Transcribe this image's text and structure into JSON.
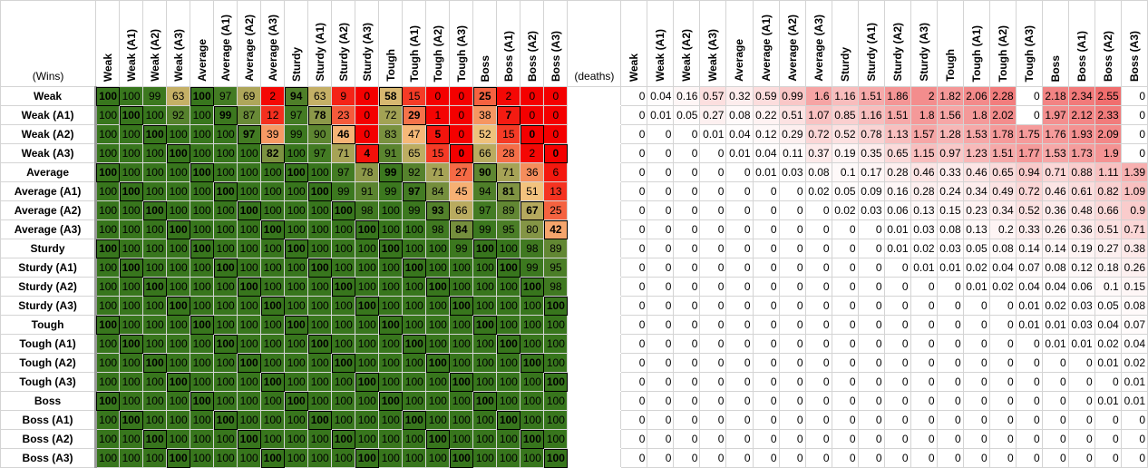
{
  "corner_label": "(Wins)",
  "deaths_label": "(deaths)",
  "columns": [
    "Weak",
    "Weak (A1)",
    "Weak (A2)",
    "Weak (A3)",
    "Average",
    "Average (A1)",
    "Average (A2)",
    "Average (A3)",
    "Sturdy",
    "Sturdy (A1)",
    "Sturdy (A2)",
    "Sturdy (A3)",
    "Tough",
    "Tough (A1)",
    "Tough (A2)",
    "Tough (A3)",
    "Boss",
    "Boss (A1)",
    "Boss (A2)",
    "Boss (A3)"
  ],
  "rows": [
    "Weak",
    "Weak (A1)",
    "Weak (A2)",
    "Weak (A3)",
    "Average",
    "Average (A1)",
    "Average (A2)",
    "Average (A3)",
    "Sturdy",
    "Sturdy (A1)",
    "Sturdy (A2)",
    "Sturdy (A3)",
    "Tough",
    "Tough (A1)",
    "Tough (A2)",
    "Tough (A3)",
    "Boss",
    "Boss (A1)",
    "Boss (A2)",
    "Boss (A3)"
  ],
  "wins": [
    [
      100,
      100,
      99,
      63,
      100,
      97,
      69,
      2,
      94,
      63,
      9,
      0,
      58,
      15,
      0,
      0,
      25,
      2,
      0,
      0
    ],
    [
      100,
      100,
      100,
      92,
      100,
      99,
      87,
      12,
      97,
      78,
      23,
      0,
      72,
      29,
      1,
      0,
      38,
      7,
      0,
      0
    ],
    [
      100,
      100,
      100,
      100,
      100,
      100,
      97,
      39,
      99,
      90,
      46,
      0,
      83,
      47,
      5,
      0,
      52,
      15,
      0,
      0
    ],
    [
      100,
      100,
      100,
      100,
      100,
      100,
      100,
      82,
      100,
      97,
      71,
      4,
      91,
      65,
      15,
      0,
      66,
      28,
      2,
      0
    ],
    [
      100,
      100,
      100,
      100,
      100,
      100,
      100,
      100,
      100,
      100,
      97,
      78,
      99,
      92,
      71,
      27,
      90,
      71,
      36,
      6
    ],
    [
      100,
      100,
      100,
      100,
      100,
      100,
      100,
      100,
      100,
      100,
      99,
      91,
      99,
      97,
      84,
      45,
      94,
      81,
      51,
      13
    ],
    [
      100,
      100,
      100,
      100,
      100,
      100,
      100,
      100,
      100,
      100,
      100,
      98,
      100,
      99,
      93,
      66,
      97,
      89,
      67,
      25
    ],
    [
      100,
      100,
      100,
      100,
      100,
      100,
      100,
      100,
      100,
      100,
      100,
      100,
      100,
      100,
      98,
      84,
      99,
      95,
      80,
      42
    ],
    [
      100,
      100,
      100,
      100,
      100,
      100,
      100,
      100,
      100,
      100,
      100,
      100,
      100,
      100,
      100,
      99,
      100,
      100,
      98,
      89
    ],
    [
      100,
      100,
      100,
      100,
      100,
      100,
      100,
      100,
      100,
      100,
      100,
      100,
      100,
      100,
      100,
      100,
      100,
      100,
      99,
      95
    ],
    [
      100,
      100,
      100,
      100,
      100,
      100,
      100,
      100,
      100,
      100,
      100,
      100,
      100,
      100,
      100,
      100,
      100,
      100,
      100,
      98
    ],
    [
      100,
      100,
      100,
      100,
      100,
      100,
      100,
      100,
      100,
      100,
      100,
      100,
      100,
      100,
      100,
      100,
      100,
      100,
      100,
      100
    ],
    [
      100,
      100,
      100,
      100,
      100,
      100,
      100,
      100,
      100,
      100,
      100,
      100,
      100,
      100,
      100,
      100,
      100,
      100,
      100,
      100
    ],
    [
      100,
      100,
      100,
      100,
      100,
      100,
      100,
      100,
      100,
      100,
      100,
      100,
      100,
      100,
      100,
      100,
      100,
      100,
      100,
      100
    ],
    [
      100,
      100,
      100,
      100,
      100,
      100,
      100,
      100,
      100,
      100,
      100,
      100,
      100,
      100,
      100,
      100,
      100,
      100,
      100,
      100
    ],
    [
      100,
      100,
      100,
      100,
      100,
      100,
      100,
      100,
      100,
      100,
      100,
      100,
      100,
      100,
      100,
      100,
      100,
      100,
      100,
      100
    ],
    [
      100,
      100,
      100,
      100,
      100,
      100,
      100,
      100,
      100,
      100,
      100,
      100,
      100,
      100,
      100,
      100,
      100,
      100,
      100,
      100
    ],
    [
      100,
      100,
      100,
      100,
      100,
      100,
      100,
      100,
      100,
      100,
      100,
      100,
      100,
      100,
      100,
      100,
      100,
      100,
      100,
      100
    ],
    [
      100,
      100,
      100,
      100,
      100,
      100,
      100,
      100,
      100,
      100,
      100,
      100,
      100,
      100,
      100,
      100,
      100,
      100,
      100,
      100
    ],
    [
      100,
      100,
      100,
      100,
      100,
      100,
      100,
      100,
      100,
      100,
      100,
      100,
      100,
      100,
      100,
      100,
      100,
      100,
      100,
      100
    ]
  ],
  "deaths": [
    [
      0,
      0.04,
      0.16,
      0.57,
      0.32,
      0.59,
      0.99,
      1.6,
      1.16,
      1.51,
      1.86,
      2,
      1.82,
      2.06,
      2.28,
      0,
      2.18,
      2.34,
      2.55,
      0
    ],
    [
      0,
      0.01,
      0.05,
      0.27,
      0.08,
      0.22,
      0.51,
      1.07,
      0.85,
      1.16,
      1.51,
      1.8,
      1.56,
      1.8,
      2.02,
      0,
      1.97,
      2.12,
      2.33,
      0
    ],
    [
      0,
      0,
      0,
      0.01,
      0.04,
      0.12,
      0.29,
      0.72,
      0.52,
      0.78,
      1.13,
      1.57,
      1.28,
      1.53,
      1.78,
      1.75,
      1.76,
      1.93,
      2.09,
      0
    ],
    [
      0,
      0,
      0,
      0,
      0.01,
      0.04,
      0.11,
      0.37,
      0.19,
      0.35,
      0.65,
      1.15,
      0.97,
      1.23,
      1.51,
      1.77,
      1.53,
      1.73,
      1.9,
      0
    ],
    [
      0,
      0,
      0,
      0,
      0,
      0.01,
      0.03,
      0.08,
      0.1,
      0.17,
      0.28,
      0.46,
      0.33,
      0.46,
      0.65,
      0.94,
      0.71,
      0.88,
      1.11,
      1.39
    ],
    [
      0,
      0,
      0,
      0,
      0,
      0,
      0,
      0.02,
      0.05,
      0.09,
      0.16,
      0.28,
      0.24,
      0.34,
      0.49,
      0.72,
      0.46,
      0.61,
      0.82,
      1.09
    ],
    [
      0,
      0,
      0,
      0,
      0,
      0,
      0,
      0,
      0.02,
      0.03,
      0.06,
      0.13,
      0.15,
      0.23,
      0.34,
      0.52,
      0.36,
      0.48,
      0.66,
      0.9
    ],
    [
      0,
      0,
      0,
      0,
      0,
      0,
      0,
      0,
      0,
      0,
      0.01,
      0.03,
      0.08,
      0.13,
      0.2,
      0.33,
      0.26,
      0.36,
      0.51,
      0.71
    ],
    [
      0,
      0,
      0,
      0,
      0,
      0,
      0,
      0,
      0,
      0,
      0.01,
      0.02,
      0.03,
      0.05,
      0.08,
      0.14,
      0.14,
      0.19,
      0.27,
      0.38
    ],
    [
      0,
      0,
      0,
      0,
      0,
      0,
      0,
      0,
      0,
      0,
      0,
      0.01,
      0.01,
      0.02,
      0.04,
      0.07,
      0.08,
      0.12,
      0.18,
      0.26
    ],
    [
      0,
      0,
      0,
      0,
      0,
      0,
      0,
      0,
      0,
      0,
      0,
      0,
      0,
      0.01,
      0.02,
      0.04,
      0.04,
      0.06,
      0.1,
      0.15
    ],
    [
      0,
      0,
      0,
      0,
      0,
      0,
      0,
      0,
      0,
      0,
      0,
      0,
      0,
      0,
      0,
      0.01,
      0.02,
      0.03,
      0.05,
      0.08
    ],
    [
      0,
      0,
      0,
      0,
      0,
      0,
      0,
      0,
      0,
      0,
      0,
      0,
      0,
      0,
      0,
      0.01,
      0.01,
      0.03,
      0.04,
      0.07
    ],
    [
      0,
      0,
      0,
      0,
      0,
      0,
      0,
      0,
      0,
      0,
      0,
      0,
      0,
      0,
      0,
      0,
      0.01,
      0.01,
      0.02,
      0.04
    ],
    [
      0,
      0,
      0,
      0,
      0,
      0,
      0,
      0,
      0,
      0,
      0,
      0,
      0,
      0,
      0,
      0,
      0,
      0,
      0.01,
      0.02
    ],
    [
      0,
      0,
      0,
      0,
      0,
      0,
      0,
      0,
      0,
      0,
      0,
      0,
      0,
      0,
      0,
      0,
      0,
      0,
      0,
      0.01
    ],
    [
      0,
      0,
      0,
      0,
      0,
      0,
      0,
      0,
      0,
      0,
      0,
      0,
      0,
      0,
      0,
      0,
      0,
      0,
      0.01,
      0.01
    ],
    [
      0,
      0,
      0,
      0,
      0,
      0,
      0,
      0,
      0,
      0,
      0,
      0,
      0,
      0,
      0,
      0,
      0,
      0,
      0,
      0
    ],
    [
      0,
      0,
      0,
      0,
      0,
      0,
      0,
      0,
      0,
      0,
      0,
      0,
      0,
      0,
      0,
      0,
      0,
      0,
      0,
      0
    ],
    [
      0,
      0,
      0,
      0,
      0,
      0,
      0,
      0,
      0,
      0,
      0,
      0,
      0,
      0,
      0,
      0,
      0,
      0,
      0,
      0
    ]
  ]
}
